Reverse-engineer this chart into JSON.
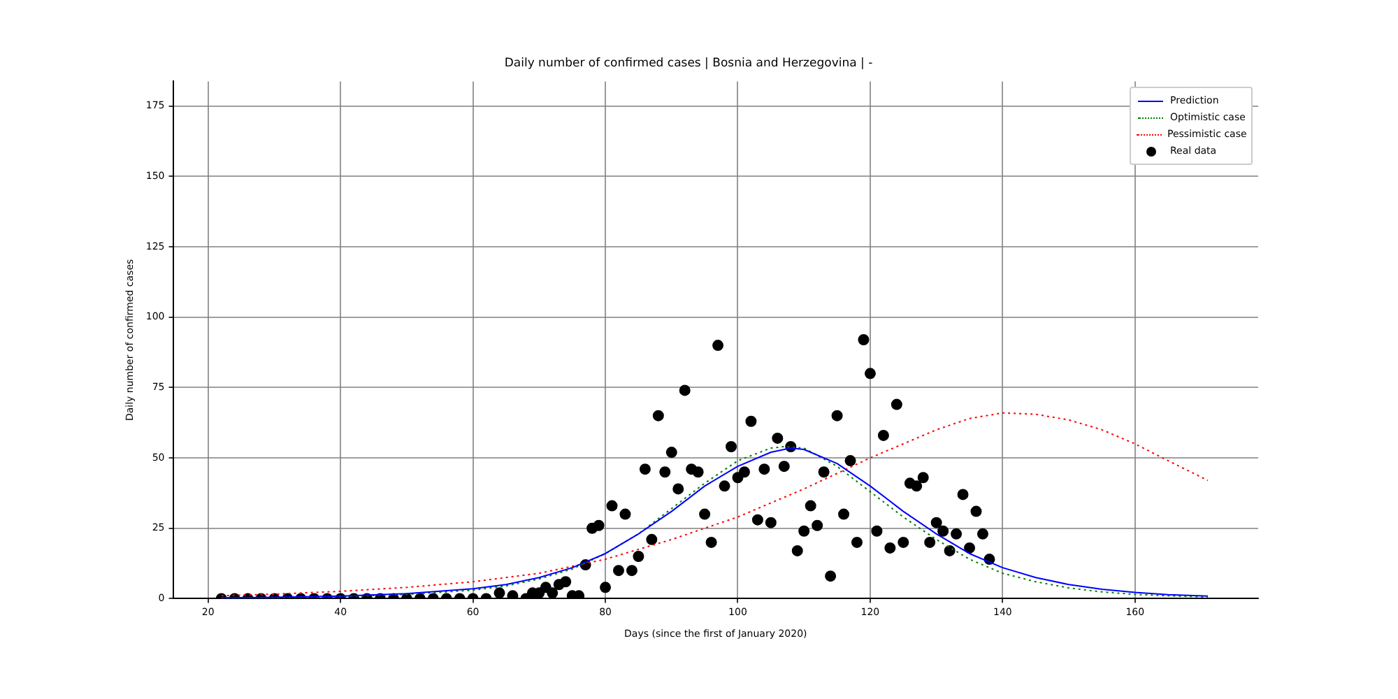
{
  "chart_data": {
    "type": "scatter",
    "title": "Daily number of confirmed cases | Bosnia and Herzegovina | -",
    "xlabel": "Days (since the first of January 2020)",
    "ylabel": "Daily number of confirmed cases",
    "xlim": [
      14.7,
      178.6
    ],
    "ylim": [
      0,
      183.8
    ],
    "xticks": [
      20,
      40,
      60,
      80,
      100,
      120,
      140,
      160
    ],
    "yticks": [
      0,
      25,
      50,
      75,
      100,
      125,
      150,
      175
    ],
    "grid": true,
    "legend": "top right",
    "series": [
      {
        "name": "Prediction",
        "type": "line",
        "color": "#0000ff",
        "line_style": "solid",
        "marker": "none",
        "x": [
          22,
          30,
          40,
          50,
          60,
          65,
          70,
          75,
          80,
          85,
          90,
          95,
          100,
          105,
          108,
          110,
          115,
          120,
          125,
          130,
          135,
          140,
          145,
          150,
          155,
          160,
          165,
          171
        ],
        "values": [
          0.3,
          0.5,
          0.9,
          1.8,
          3.5,
          5,
          7.5,
          11,
          16,
          23,
          31,
          40,
          47,
          52,
          53.5,
          53,
          48,
          40,
          31,
          23,
          16,
          11,
          7.5,
          5,
          3.3,
          2.2,
          1.4,
          0.9
        ]
      },
      {
        "name": "Optimistic case",
        "type": "line",
        "color": "#008000",
        "line_style": "dotted",
        "marker": "none",
        "x": [
          22,
          30,
          40,
          50,
          60,
          65,
          70,
          75,
          80,
          85,
          90,
          95,
          100,
          105,
          107,
          110,
          115,
          120,
          125,
          130,
          135,
          140,
          145,
          150,
          155,
          160,
          165,
          171
        ],
        "values": [
          0.2,
          0.4,
          0.7,
          1.5,
          3,
          4.5,
          7,
          10.5,
          16,
          23,
          32,
          41,
          49,
          53.5,
          54,
          53.5,
          47,
          38,
          29,
          21,
          14,
          9,
          6,
          3.8,
          2.4,
          1.5,
          1,
          0.6
        ]
      },
      {
        "name": "Pessimistic case",
        "type": "line",
        "color": "#ff0000",
        "line_style": "dotted",
        "marker": "none",
        "x": [
          22,
          30,
          40,
          50,
          60,
          70,
          80,
          90,
          100,
          110,
          120,
          125,
          130,
          135,
          140,
          145,
          150,
          155,
          160,
          165,
          171
        ],
        "values": [
          1,
          1.6,
          2.6,
          4,
          6,
          9,
          14,
          21,
          29,
          39,
          50,
          55,
          60,
          64,
          66,
          65.5,
          63.5,
          60,
          55,
          49,
          42
        ]
      },
      {
        "name": "Real data",
        "type": "scatter",
        "color": "#000000",
        "marker": "circle",
        "x": [
          22,
          24,
          26,
          28,
          30,
          32,
          34,
          36,
          38,
          40,
          42,
          44,
          46,
          48,
          50,
          52,
          54,
          56,
          58,
          60,
          62,
          64,
          66,
          68,
          69,
          70,
          71,
          72,
          73,
          74,
          75,
          76,
          77,
          78,
          79,
          80,
          81,
          82,
          83,
          84,
          85,
          86,
          87,
          88,
          89,
          90,
          91,
          92,
          93,
          94,
          95,
          96,
          97,
          98,
          99,
          100,
          101,
          102,
          103,
          104,
          105,
          106,
          107,
          108,
          109,
          110,
          111,
          112,
          113,
          114,
          115,
          116,
          117,
          118,
          119,
          120,
          121,
          122,
          123,
          124,
          125,
          126,
          127,
          128,
          129,
          130,
          131,
          132,
          133,
          134,
          135,
          136,
          137,
          138
        ],
        "values": [
          0,
          0,
          0,
          0,
          0,
          0,
          0,
          0,
          0,
          0,
          0,
          0,
          0,
          0,
          0,
          0,
          0,
          0,
          0,
          0,
          0,
          2,
          1,
          0,
          2,
          2,
          4,
          2,
          5,
          6,
          1,
          1,
          12,
          25,
          26,
          4,
          33,
          10,
          30,
          10,
          15,
          46,
          21,
          65,
          45,
          52,
          39,
          74,
          46,
          45,
          30,
          20,
          90,
          40,
          54,
          43,
          45,
          63,
          28,
          46,
          27,
          57,
          47,
          54,
          17,
          24,
          33,
          26,
          45,
          8,
          65,
          30,
          49,
          20,
          92,
          80,
          24,
          58,
          18,
          69,
          20,
          41,
          40,
          43,
          20,
          27,
          24,
          17,
          23,
          37,
          18,
          31,
          23,
          14
        ]
      }
    ]
  }
}
